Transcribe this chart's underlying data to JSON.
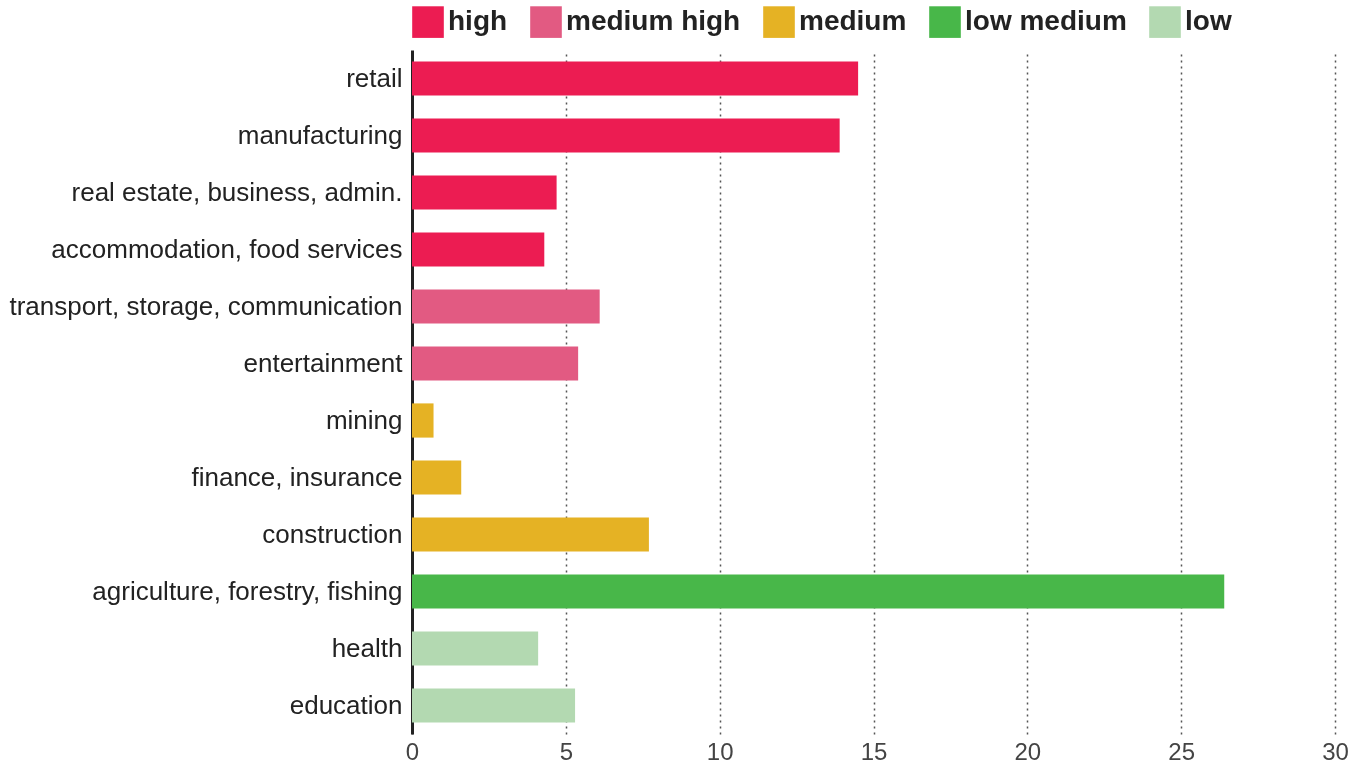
{
  "chart_data": {
    "type": "bar",
    "orientation": "horizontal",
    "categories": [
      "retail",
      "manufacturing",
      "real estate, business, admin.",
      "accommodation, food services",
      "transport, storage, communication",
      "entertainment",
      "mining",
      "finance, insurance",
      "construction",
      "agriculture, forestry, fishing",
      "health",
      "education"
    ],
    "series": [
      {
        "name": "high",
        "color": "#ec1c52",
        "values": [
          14.5,
          13.9,
          4.7,
          4.3,
          null,
          null,
          null,
          null,
          null,
          null,
          null,
          null
        ]
      },
      {
        "name": "medium high",
        "color": "#e25a82",
        "values": [
          null,
          null,
          null,
          null,
          6.1,
          5.4,
          null,
          null,
          null,
          null,
          null,
          null
        ]
      },
      {
        "name": "medium",
        "color": "#e5b224",
        "values": [
          null,
          null,
          null,
          null,
          null,
          null,
          0.7,
          1.6,
          7.7,
          null,
          null,
          null
        ]
      },
      {
        "name": "low medium",
        "color": "#48b749",
        "values": [
          null,
          null,
          null,
          null,
          null,
          null,
          null,
          null,
          null,
          26.4,
          null,
          null
        ]
      },
      {
        "name": "low",
        "color": "#b3d9b1",
        "values": [
          null,
          null,
          null,
          null,
          null,
          null,
          null,
          null,
          null,
          null,
          4.1,
          5.3
        ]
      }
    ],
    "xlim": [
      0,
      30
    ],
    "xticks": [
      0,
      5,
      10,
      15,
      20,
      25,
      30
    ],
    "grid": "x",
    "legend": "top"
  }
}
